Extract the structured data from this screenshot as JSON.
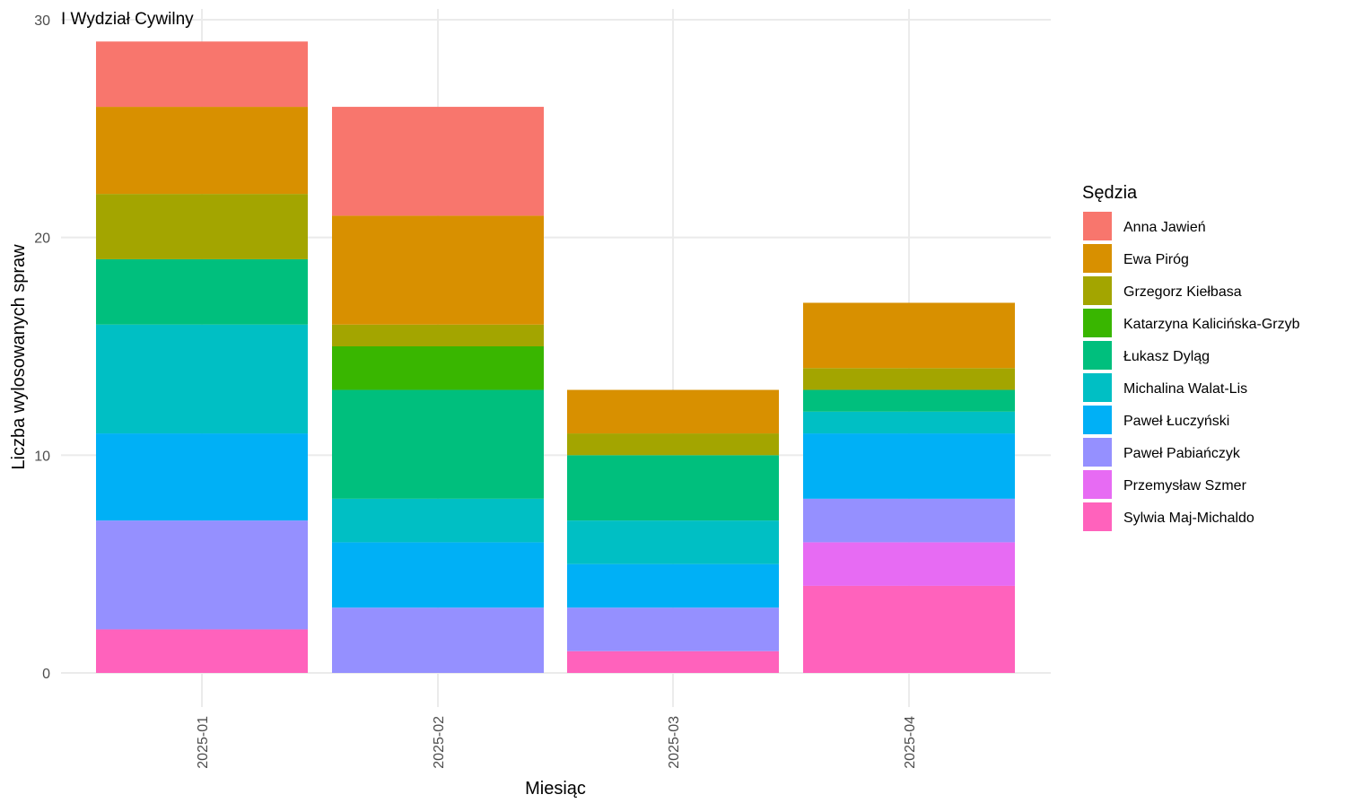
{
  "chart_data": {
    "type": "bar",
    "stacked": true,
    "title": "I Wydział Cywilny",
    "xlabel": "Miesiąc",
    "ylabel": "Liczba wylosowanych spraw",
    "ylim": [
      0,
      30
    ],
    "yticks": [
      "0",
      "10",
      "20",
      "30"
    ],
    "grid": true,
    "legend_position": "right",
    "legend_title": "Sędzia",
    "categories": [
      "2025-01",
      "2025-02",
      "2025-03",
      "2025-04"
    ],
    "series": [
      {
        "name": "Anna Jawień",
        "color": "#F8766D",
        "values": [
          3,
          5,
          0,
          0
        ]
      },
      {
        "name": "Ewa Piróg",
        "color": "#D89000",
        "values": [
          4,
          5,
          2,
          3
        ]
      },
      {
        "name": "Grzegorz Kiełbasa",
        "color": "#A3A500",
        "values": [
          3,
          1,
          1,
          1
        ]
      },
      {
        "name": "Katarzyna Kalicińska-Grzyb",
        "color": "#39B600",
        "values": [
          0,
          2,
          0,
          0
        ]
      },
      {
        "name": "Łukasz Dyląg",
        "color": "#00BF7D",
        "values": [
          3,
          5,
          3,
          1
        ]
      },
      {
        "name": "Michalina Walat-Lis",
        "color": "#00BFC4",
        "values": [
          5,
          2,
          2,
          1
        ]
      },
      {
        "name": "Paweł Łuczyński",
        "color": "#00B0F6",
        "values": [
          4,
          3,
          2,
          3
        ]
      },
      {
        "name": "Paweł Pabiańczyk",
        "color": "#9590FF",
        "values": [
          5,
          3,
          2,
          2
        ]
      },
      {
        "name": "Przemysław Szmer",
        "color": "#E76BF3",
        "values": [
          0,
          0,
          0,
          2
        ]
      },
      {
        "name": "Sylwia Maj-Michaldo",
        "color": "#FF62BC",
        "values": [
          2,
          0,
          1,
          4
        ]
      }
    ]
  }
}
